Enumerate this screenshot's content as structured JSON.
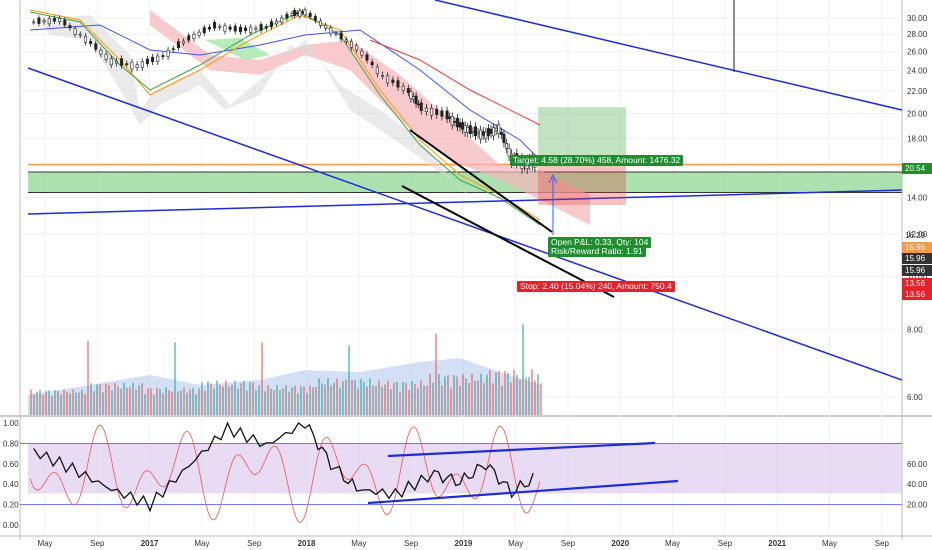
{
  "chart_data": {
    "type": "line",
    "title": "",
    "price_axis": {
      "scale": "log",
      "ylim": [
        5.5,
        31.5
      ],
      "tick_labels": [
        "30.00",
        "28.00",
        "26.00",
        "24.00",
        "22.00",
        "20.00",
        "18.00",
        "16.00",
        "14.00",
        "12.00",
        "10.00",
        "8.00",
        "6.00"
      ]
    },
    "oscillator_left_axis": {
      "ylim": [
        0,
        1
      ],
      "tick_labels": [
        "1.00",
        "0.80",
        "0.60",
        "0.40",
        "0.20",
        "0.00"
      ]
    },
    "oscillator_right_axis": {
      "ylim": [
        0,
        100
      ],
      "tick_labels": [
        "60.00",
        "40.00",
        "20.00"
      ]
    },
    "x_tick_labels": [
      "May",
      "Sep",
      "2017",
      "May",
      "Sep",
      "2018",
      "May",
      "Sep",
      "2019",
      "May",
      "Sep",
      "2020",
      "May",
      "Sep",
      "2021",
      "May",
      "Sep"
    ],
    "price_series": {
      "name": "",
      "x": [
        "2016-04",
        "2016-06",
        "2016-08",
        "2016-10",
        "2016-12",
        "2017-02",
        "2017-04",
        "2017-06",
        "2017-08",
        "2017-10",
        "2017-12",
        "2018-01",
        "2018-03",
        "2018-05",
        "2018-07",
        "2018-09",
        "2018-10",
        "2018-12",
        "2019-01",
        "2019-02",
        "2019-03",
        "2019-04",
        "2019-05",
        "2019-06",
        "2019-07"
      ],
      "values": [
        29.5,
        29.8,
        27.5,
        25.0,
        24.5,
        25.5,
        27.5,
        29.0,
        28.5,
        28.8,
        30.5,
        30.8,
        28.5,
        26.5,
        23.5,
        22.0,
        20.5,
        19.8,
        19.0,
        18.5,
        18.3,
        18.8,
        16.6,
        16.2,
        16.29
      ]
    },
    "volume_series": {
      "x": [
        "2016-05",
        "2016-09",
        "2017-01",
        "2017-05",
        "2017-09",
        "2018-01",
        "2018-05",
        "2018-09",
        "2019-01",
        "2019-05"
      ],
      "values": [
        0.3,
        0.45,
        0.35,
        0.5,
        0.4,
        0.55,
        0.5,
        0.65,
        0.75,
        0.45
      ]
    },
    "oscillator_series": {
      "x": [
        "2016-04",
        "2016-07",
        "2016-10",
        "2017-01",
        "2017-04",
        "2017-07",
        "2017-10",
        "2018-01",
        "2018-03",
        "2018-05",
        "2018-08",
        "2018-11",
        "2019-01",
        "2019-03",
        "2019-05",
        "2019-07"
      ],
      "values": [
        0.72,
        0.55,
        0.35,
        0.2,
        0.58,
        0.95,
        0.78,
        1.0,
        0.6,
        0.35,
        0.3,
        0.5,
        0.42,
        0.6,
        0.32,
        0.48
      ]
    },
    "levels": {
      "current": "16.29",
      "target_price": "20.54",
      "entry_price": "15.96",
      "support": "15.96",
      "stop_price": "13.56"
    },
    "annotations": {
      "target": "Target: 4.58 (28.70%) 458, Amount: 1476.32",
      "open_pnl": "Open P&L: 0.33, Qty: 104",
      "risk_reward": "Risk/Reward Ratio: 1.91",
      "stop": "Stop: 2.40 (15.04%) 240, Amount: 750.4"
    },
    "grid": true,
    "legend": "none"
  },
  "colors": {
    "up": "#26a69a",
    "down": "#ef5350",
    "trendline": "#1e2bd6",
    "target_fill": "#4caf50",
    "stop_fill": "#e53935",
    "support_zone": "#8fd694",
    "cloud_red": "#f7b3b8",
    "cloud_green": "#a5e6a8",
    "oscillator_band": "#d9c4ec",
    "price_tag_current": "#dddddd"
  }
}
